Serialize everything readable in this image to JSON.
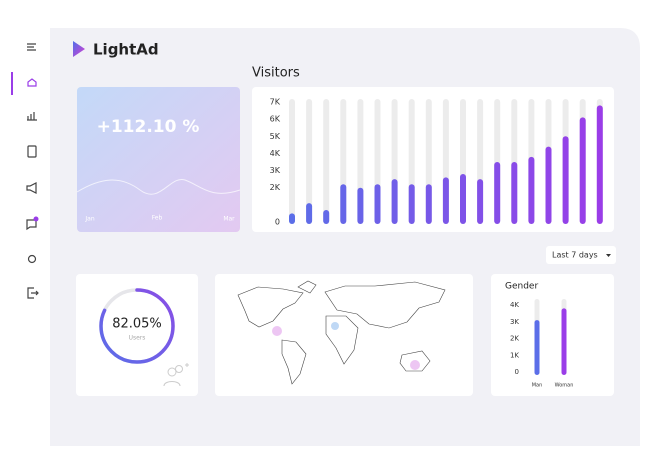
{
  "logo": "LightAd",
  "growth": {
    "headline": "+112.10 %",
    "months": [
      "Jan",
      "Feb",
      "Mar"
    ]
  },
  "visitors": {
    "title": "Visitors",
    "ylim": [
      0,
      7000
    ],
    "yticks": [
      0,
      {
        "value": 2000,
        "label": "2K"
      },
      {
        "value": 3000,
        "label": "3K"
      },
      {
        "value": 4000,
        "label": "4K"
      },
      {
        "value": 5000,
        "label": "5K"
      },
      {
        "value": 6000,
        "label": "6K"
      },
      {
        "value": 7000,
        "label": "7K"
      }
    ],
    "values": [
      500,
      1100,
      700,
      2200,
      2000,
      2200,
      2500,
      2200,
      2200,
      2600,
      2800,
      2500,
      3500,
      3500,
      3800,
      4400,
      5000,
      6100,
      6800
    ]
  },
  "period": "Last 7 days",
  "users": {
    "value": 82.05,
    "value_label": "82.05%",
    "label": "Users"
  },
  "gender": {
    "title": "Gender",
    "ylim": [
      0,
      4000
    ],
    "yticks": [
      0,
      {
        "value": 1000,
        "label": "1K"
      },
      {
        "value": 2000,
        "label": "2K"
      },
      {
        "value": 3000,
        "label": "3K"
      },
      {
        "value": 4000,
        "label": "4K"
      }
    ],
    "categories": [
      "Man",
      "Woman"
    ],
    "values": [
      3100,
      3800
    ],
    "colors": [
      "#5b6ee8",
      "#9a3de8"
    ]
  }
}
